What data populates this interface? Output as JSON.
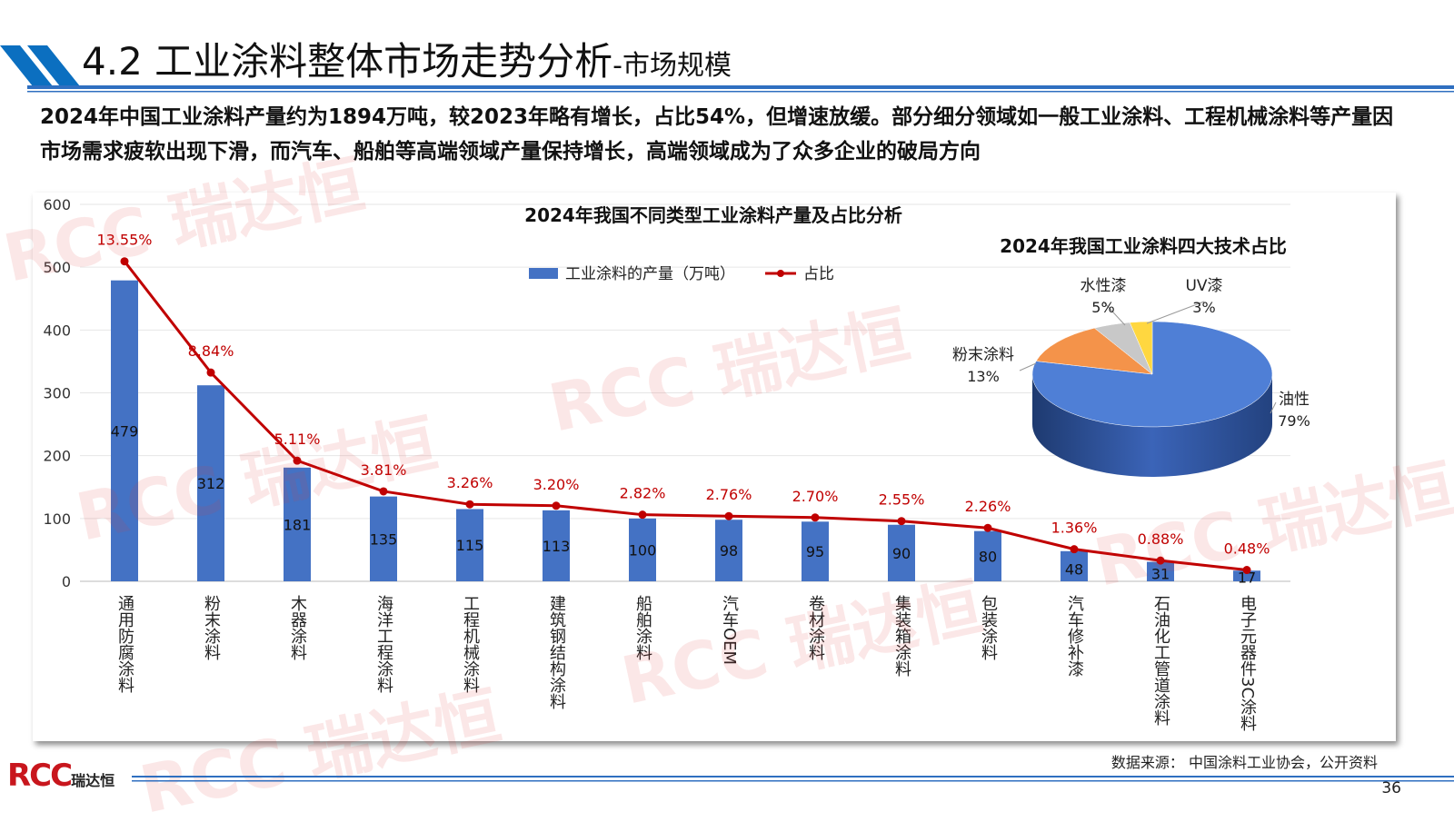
{
  "header": {
    "title_main": "4.2 工业涂料整体市场走势分析",
    "title_sub": "-市场规模"
  },
  "summary": "2024年中国工业涂料产量约为1894万吨，较2023年略有增长，占比54%，但增速放缓。部分细分领域如一般工业涂料、工程机械涂料等产量因市场需求疲软出现下滑，而汽车、船舶等高端领域产量保持增长，高端领域成为了众多企业的破局方向",
  "chart_data": [
    {
      "type": "bar",
      "title": "2024年我国不同类型工业涂料产量及占比分析",
      "categories": [
        "通用防腐涂料",
        "粉末涂料",
        "木器涂料",
        "海洋工程涂料",
        "工程机械涂料",
        "建筑钢结构涂料",
        "船舶涂料",
        "汽车OEM",
        "卷材涂料",
        "集装箱涂料",
        "包装涂料",
        "汽车修补漆",
        "石油化工管道涂料",
        "电子元器件3C涂料"
      ],
      "series": [
        {
          "name": "工业涂料的产量（万吨）",
          "type": "bar",
          "values": [
            479,
            312,
            181,
            135,
            115,
            113,
            100,
            98,
            95,
            90,
            80,
            48,
            31,
            17
          ],
          "color": "#4472c4"
        },
        {
          "name": "占比",
          "type": "line",
          "values": [
            13.55,
            8.84,
            5.11,
            3.81,
            3.26,
            3.2,
            2.82,
            2.76,
            2.7,
            2.55,
            2.26,
            1.36,
            0.88,
            0.48
          ],
          "labels": [
            "13.55%",
            "8.84%",
            "5.11%",
            "3.81%",
            "3.26%",
            "3.20%",
            "2.82%",
            "2.76%",
            "2.70%",
            "2.55%",
            "2.26%",
            "1.36%",
            "0.88%",
            "0.48%"
          ],
          "color": "#c00000"
        }
      ],
      "ylim": [
        0,
        600
      ],
      "yticks": [
        "0",
        "100",
        "200",
        "300",
        "400",
        "500",
        "600"
      ],
      "legend": "top",
      "grid": true
    },
    {
      "type": "pie",
      "title": "2024年我国工业涂料四大技术占比",
      "categories": [
        "油性",
        "粉末涂料",
        "水性漆",
        "UV漆"
      ],
      "values": [
        79,
        13,
        5,
        3
      ],
      "labels": [
        "79%",
        "13%",
        "5%",
        "3%"
      ],
      "colors": [
        "#4f7fd6",
        "#f4934a",
        "#c8c8c8",
        "#ffd740"
      ],
      "style": "3d"
    }
  ],
  "footer": {
    "source": "数据来源： 中国涂料工业协会，公开资料",
    "page": "36",
    "logo": "RCC瑞达恒",
    "watermark": "RCC瑞达恒"
  }
}
